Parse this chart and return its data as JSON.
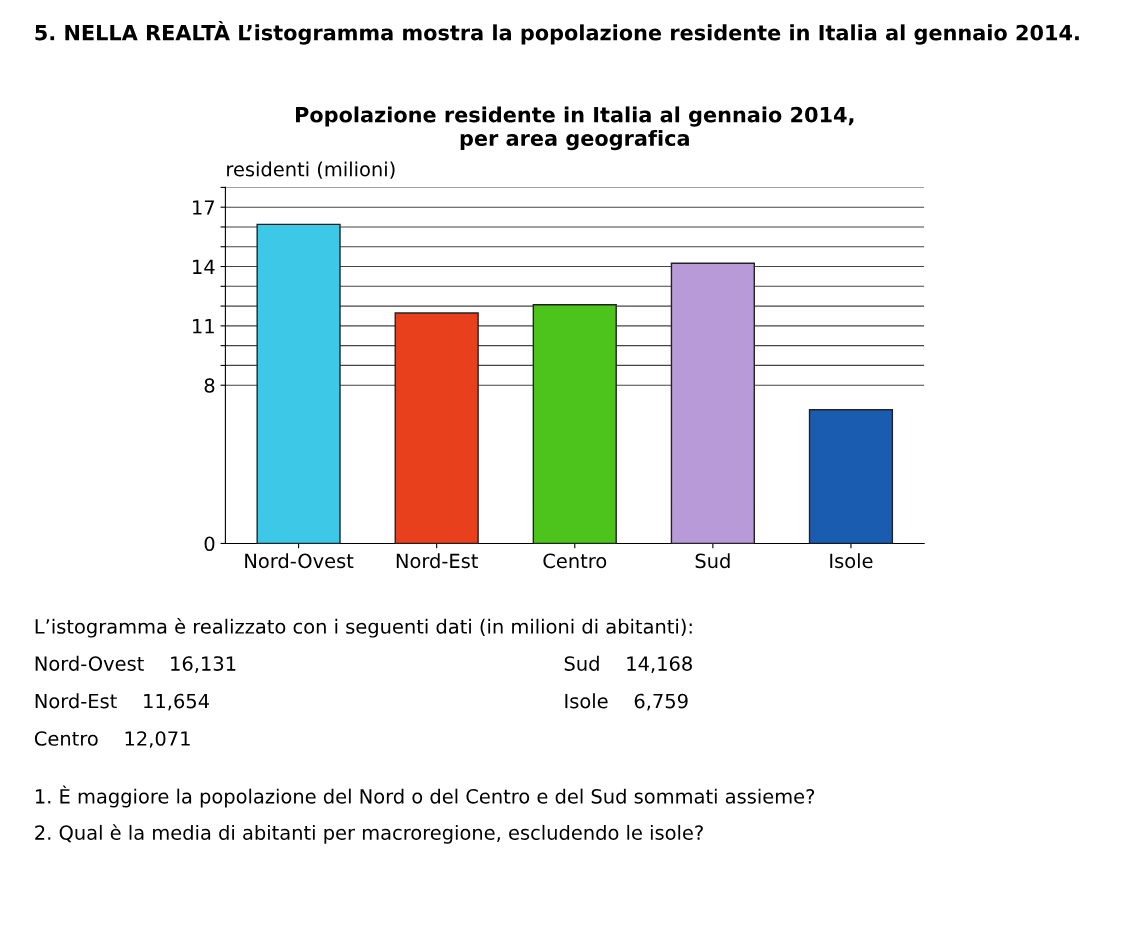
{
  "chart_data": {
    "type": "bar",
    "title": "Popolazione residente in Italia al gennaio 2014,\nper area geografica",
    "ylabel": "residenti (milioni)",
    "categories": [
      "Nord-Ovest",
      "Nord-Est",
      "Centro",
      "Sud",
      "Isole"
    ],
    "values": [
      16.131,
      11.654,
      12.071,
      14.168,
      6.759
    ],
    "colors": [
      "#3ec8e8",
      "#e8401c",
      "#4cc41c",
      "#b89ad8",
      "#1a5cb0"
    ],
    "ylim": [
      0,
      18
    ],
    "yticks": [
      0,
      {
        "value": 8,
        "label": "8"
      },
      {
        "value": 9,
        "label": null
      },
      {
        "value": 10,
        "label": null
      },
      11,
      {
        "value": 12,
        "label": null
      },
      {
        "value": 13,
        "label": null
      },
      14,
      {
        "value": 15,
        "label": null
      },
      {
        "value": 16,
        "label": null
      },
      17,
      {
        "value": 18,
        "label": null
      }
    ],
    "grid": "y",
    "annotations": [
      "5. NELLA REALTÀ L’istogramma mostra la popolazione residente in Italia al gennaio 2014.",
      "L’istogramma è realizzato con i seguenti dati (in milioni di abitanti):",
      "Nord-Ovest    16,131",
      "Nord-Est    11,654",
      "Centro    12,071",
      "Sud    14,168",
      "Isole    6,759",
      "1. È maggiore la popolazione del Nord o del Centro e del Sud sommati assieme?",
      "2. Qual è la media di abitanti per macroregione, escludendo le isole?"
    ]
  }
}
